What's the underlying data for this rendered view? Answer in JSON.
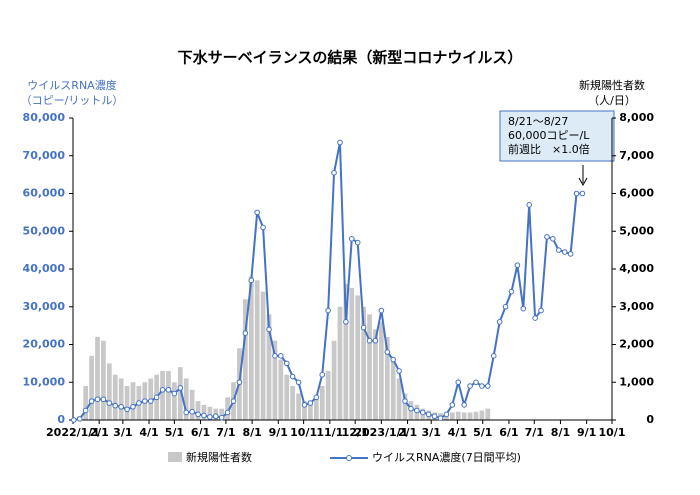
{
  "chart_data": {
    "type": "bar-line",
    "title": "下水サーベイランスの結果（新型コロナウイルス）",
    "y_label": [
      "ウイルスRNA濃度",
      "（コピー/リットル）"
    ],
    "y2_label": [
      "新規陽性者数",
      "（人/日）"
    ],
    "annotation": [
      "8/21～8/27",
      "60,000コピー/L",
      "前週比　×1.0倍"
    ],
    "x": [
      "2022/1/2",
      "2022/1/9",
      "2022/1/16",
      "2022/1/23",
      "2022/1/30",
      "2022/2/6",
      "2022/2/13",
      "2022/2/20",
      "2022/2/27",
      "2022/3/6",
      "2022/3/13",
      "2022/3/20",
      "2022/3/27",
      "2022/4/3",
      "2022/4/10",
      "2022/4/17",
      "2022/4/24",
      "2022/5/1",
      "2022/5/8",
      "2022/5/15",
      "2022/5/22",
      "2022/5/29",
      "2022/6/5",
      "2022/6/12",
      "2022/6/19",
      "2022/6/26",
      "2022/7/3",
      "2022/7/10",
      "2022/7/17",
      "2022/7/24",
      "2022/7/31",
      "2022/8/7",
      "2022/8/14",
      "2022/8/21",
      "2022/8/28",
      "2022/9/4",
      "2022/9/11",
      "2022/9/18",
      "2022/9/25",
      "2022/10/2",
      "2022/10/9",
      "2022/10/16",
      "2022/10/23",
      "2022/10/30",
      "2022/11/6",
      "2022/11/13",
      "2022/11/20",
      "2022/11/27",
      "2022/12/4",
      "2022/12/11",
      "2022/12/18",
      "2022/12/25",
      "2023/1/1",
      "2023/1/8",
      "2023/1/15",
      "2023/1/22",
      "2023/1/29",
      "2023/2/5",
      "2023/2/12",
      "2023/2/19",
      "2023/2/26",
      "2023/3/5",
      "2023/3/12",
      "2023/3/19",
      "2023/3/26",
      "2023/4/2",
      "2023/4/9",
      "2023/4/16",
      "2023/4/23",
      "2023/4/30",
      "2023/5/7",
      "2023/5/14",
      "2023/5/21",
      "2023/5/28",
      "2023/6/4",
      "2023/6/11",
      "2023/6/18",
      "2023/6/25",
      "2023/7/2",
      "2023/7/9",
      "2023/7/16",
      "2023/7/23",
      "2023/7/30",
      "2023/8/6",
      "2023/8/13",
      "2023/8/20",
      "2023/8/27"
    ],
    "series": [
      {
        "name": "新規陽性者数",
        "kind": "bar",
        "axis": "y2",
        "color": "#c8c8c8",
        "values": [
          0,
          100,
          900,
          1700,
          2200,
          2100,
          1500,
          1200,
          1100,
          900,
          1000,
          900,
          1000,
          1100,
          1200,
          1300,
          1300,
          1000,
          1400,
          1100,
          800,
          500,
          400,
          350,
          300,
          300,
          600,
          1000,
          1900,
          3200,
          3800,
          3700,
          3400,
          2800,
          2100,
          1600,
          1200,
          900,
          700,
          500,
          500,
          600,
          900,
          1300,
          2100,
          3000,
          3600,
          3500,
          3300,
          3000,
          2800,
          2400,
          2600,
          2200,
          1600,
          1100,
          700,
          500,
          400,
          300,
          250,
          200,
          180,
          200,
          200,
          220,
          200,
          200,
          220,
          250,
          300,
          null,
          null,
          null,
          null,
          null,
          null,
          null,
          null,
          null,
          null,
          null,
          null,
          null,
          null,
          null,
          null
        ]
      },
      {
        "name": "ウイルスRNA濃度(7日間平均)",
        "kind": "line",
        "color": "#4472c4",
        "values": [
          0,
          300,
          2500,
          5000,
          5500,
          5500,
          4500,
          3800,
          3500,
          2800,
          3500,
          4500,
          5000,
          5000,
          6000,
          8000,
          8000,
          7000,
          8500,
          2000,
          2200,
          1500,
          1200,
          800,
          1000,
          600,
          2000,
          5000,
          10000,
          23000,
          37000,
          55000,
          51000,
          24000,
          17000,
          17000,
          15000,
          11500,
          10000,
          4000,
          4500,
          6000,
          12000,
          29000,
          65500,
          73500,
          26000,
          48000,
          47000,
          24500,
          21000,
          21000,
          29000,
          18000,
          16000,
          13000,
          5000,
          3000,
          2500,
          2000,
          1500,
          1000,
          500,
          1500,
          4000,
          10000,
          4000,
          9000,
          10000,
          9000,
          9000,
          17000,
          26000,
          30000,
          34000,
          41000,
          29500,
          57000,
          27000,
          29000,
          48500,
          48000,
          45000,
          44500,
          44000,
          60000,
          60000
        ]
      }
    ],
    "xlim": [
      "2022/1/1",
      "2023/10/1"
    ],
    "xticks": [
      "2022/1/1",
      {
        "value": "2022/2/1",
        "label": "2/1"
      },
      {
        "value": "2022/3/1",
        "label": "3/1"
      },
      {
        "value": "2022/4/1",
        "label": "4/1"
      },
      {
        "value": "2022/5/1",
        "label": "5/1"
      },
      {
        "value": "2022/6/1",
        "label": "6/1"
      },
      {
        "value": "2022/7/1",
        "label": "7/1"
      },
      {
        "value": "2022/8/1",
        "label": "8/1"
      },
      {
        "value": "2022/9/1",
        "label": "9/1"
      },
      {
        "value": "2022/10/1",
        "label": "10/1"
      },
      {
        "value": "2022/11/1",
        "label": "11/1"
      },
      {
        "value": "2022/12/1",
        "label": "12/1"
      },
      "2023/1/1",
      {
        "value": "2023/2/1",
        "label": "2/1"
      },
      {
        "value": "2023/3/1",
        "label": "3/1"
      },
      {
        "value": "2023/4/1",
        "label": "4/1"
      },
      {
        "value": "2023/5/1",
        "label": "5/1"
      },
      {
        "value": "2023/6/1",
        "label": "6/1"
      },
      {
        "value": "2023/7/1",
        "label": "7/1"
      },
      {
        "value": "2023/8/1",
        "label": "8/1"
      },
      {
        "value": "2023/9/1",
        "label": "9/1"
      },
      {
        "value": "2023/10/1",
        "label": "10/1"
      }
    ],
    "ylim": [
      0,
      80000
    ],
    "yticks": [
      0,
      {
        "value": 10000,
        "label": "10,000"
      },
      {
        "value": 20000,
        "label": "20,000"
      },
      {
        "value": 30000,
        "label": "30,000"
      },
      {
        "value": 40000,
        "label": "40,000"
      },
      {
        "value": 50000,
        "label": "50,000"
      },
      {
        "value": 60000,
        "label": "60,000"
      },
      {
        "value": 70000,
        "label": "70,000"
      },
      {
        "value": 80000,
        "label": "80,000"
      }
    ],
    "y2lim": [
      0,
      8000
    ],
    "y2ticks": [
      0,
      {
        "value": 1000,
        "label": "1,000"
      },
      {
        "value": 2000,
        "label": "2,000"
      },
      {
        "value": 3000,
        "label": "3,000"
      },
      {
        "value": 4000,
        "label": "4,000"
      },
      {
        "value": 5000,
        "label": "5,000"
      },
      {
        "value": 6000,
        "label": "6,000"
      },
      {
        "value": 7000,
        "label": "7,000"
      },
      {
        "value": 8000,
        "label": "8,000"
      }
    ]
  }
}
